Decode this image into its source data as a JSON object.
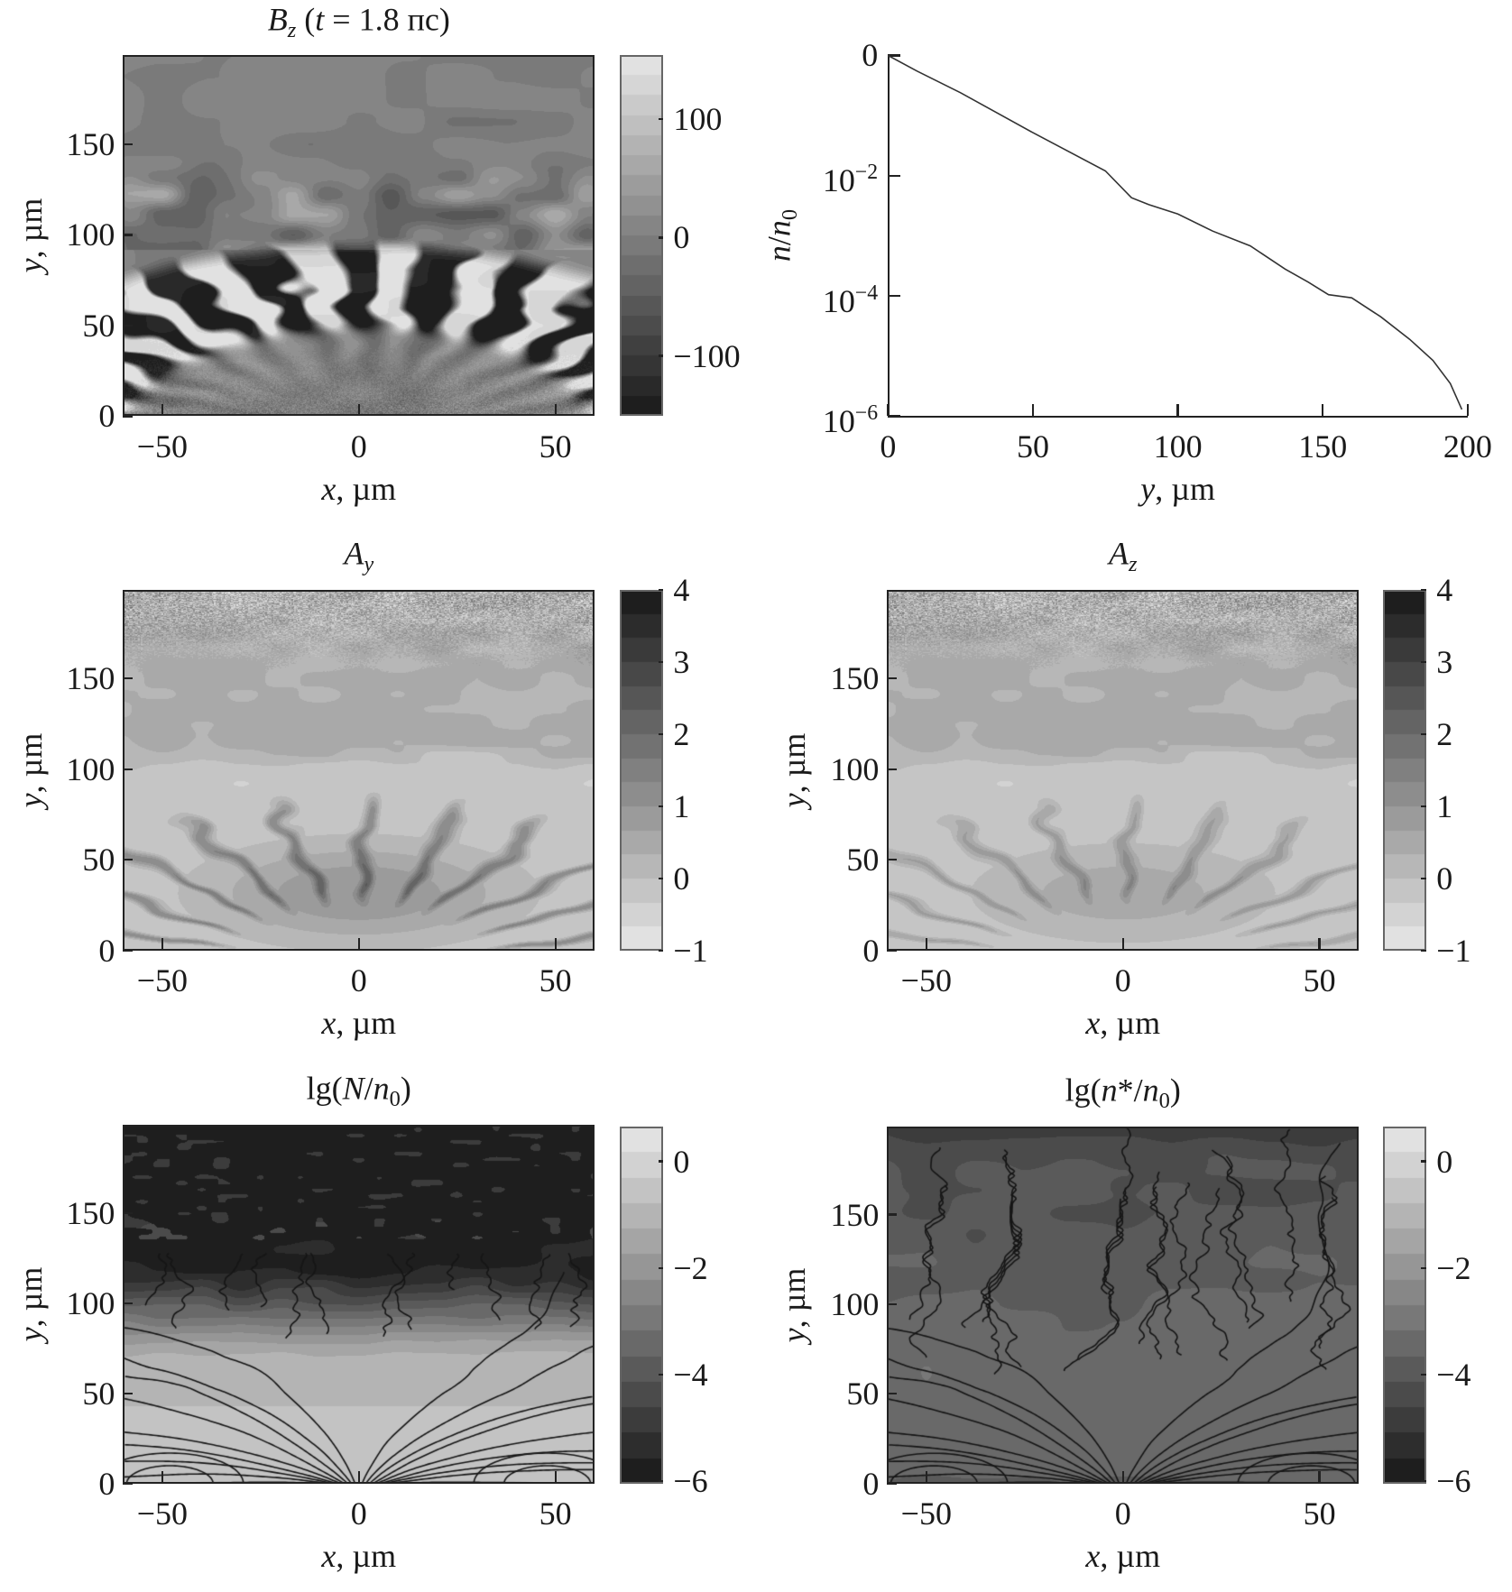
{
  "chart_data": [
    {
      "type": "heatmap",
      "title_parts": [
        {
          "t": "B",
          "s": "i"
        },
        {
          "t": "z",
          "s": "subi"
        },
        {
          "t": " (",
          "s": "n"
        },
        {
          "t": "t",
          "s": "i"
        },
        {
          "t": " = 1.8 пс)",
          "s": "n"
        }
      ],
      "xlabel_parts": [
        {
          "t": "x",
          "s": "i"
        },
        {
          "t": ", µm",
          "s": "n"
        }
      ],
      "ylabel_parts": [
        {
          "t": "y",
          "s": "i"
        },
        {
          "t": ", µm",
          "s": "n"
        }
      ],
      "xlim": [
        -60,
        60
      ],
      "ylim": [
        0,
        199
      ],
      "x_ticks": [
        "−50",
        "0",
        "50"
      ],
      "x_tick_values": [
        -50,
        0,
        50
      ],
      "y_ticks": [
        "0",
        "50",
        "100",
        "150"
      ],
      "y_tick_values": [
        0,
        50,
        100,
        150
      ],
      "colormap": "grayscale, dark = negative, light = positive",
      "colorbar": {
        "range": [
          -151,
          154
        ],
        "ticks": [
          "100",
          "0",
          "−100"
        ],
        "tick_values": [
          100,
          0,
          -100
        ],
        "levels": 18
      }
    },
    {
      "type": "line",
      "xlabel_parts": [
        {
          "t": "y",
          "s": "i"
        },
        {
          "t": ", µm",
          "s": "n"
        }
      ],
      "ylabel_parts": [
        {
          "t": "n",
          "s": "i"
        },
        {
          "t": "/",
          "s": "n"
        },
        {
          "t": "n",
          "s": "i"
        },
        {
          "t": "0",
          "s": "sub"
        }
      ],
      "xlim": [
        0,
        200
      ],
      "ylim": [
        1e-06,
        1
      ],
      "yscale": "log",
      "x_ticks": [
        "0",
        "50",
        "100",
        "150",
        "200"
      ],
      "x_tick_values": [
        0,
        50,
        100,
        150,
        200
      ],
      "y_ticks": [
        {
          "b": "0"
        },
        {
          "b": "10",
          "e": "−2"
        },
        {
          "b": "10",
          "e": "−4"
        },
        {
          "b": "10",
          "e": "−6"
        }
      ],
      "y_tick_values": [
        1,
        0.01,
        0.0001,
        1e-06
      ],
      "x": [
        0,
        10,
        25,
        50,
        75,
        84,
        90,
        100,
        112,
        125,
        137,
        145,
        152,
        160,
        170,
        180,
        188,
        194,
        198
      ],
      "y": [
        1,
        0.55,
        0.24,
        0.052,
        0.012,
        0.0043,
        0.0033,
        0.0023,
        0.0012,
        0.00068,
        0.00028,
        0.00017,
        0.000105,
        9.3e-05,
        4.5e-05,
        1.9e-05,
        8.5e-06,
        3.5e-06,
        1.3e-06
      ],
      "color": "#333333"
    },
    {
      "type": "heatmap",
      "title_parts": [
        {
          "t": "A",
          "s": "i"
        },
        {
          "t": "y",
          "s": "subi"
        }
      ],
      "xlabel_parts": [
        {
          "t": "x",
          "s": "i"
        },
        {
          "t": ", µm",
          "s": "n"
        }
      ],
      "ylabel_parts": [
        {
          "t": "y",
          "s": "i"
        },
        {
          "t": ", µm",
          "s": "n"
        }
      ],
      "xlim": [
        -60,
        60
      ],
      "ylim": [
        0,
        199
      ],
      "x_ticks": [
        "−50",
        "0",
        "50"
      ],
      "x_tick_values": [
        -50,
        0,
        50
      ],
      "y_ticks": [
        "0",
        "50",
        "100",
        "150"
      ],
      "y_tick_values": [
        0,
        50,
        100,
        150
      ],
      "colormap": "grayscale, light = low, dark = high",
      "colorbar": {
        "range": [
          -1,
          4
        ],
        "ticks": [
          "4",
          "3",
          "2",
          "1",
          "0",
          "−1"
        ],
        "tick_values": [
          4,
          3,
          2,
          1,
          0,
          -1
        ],
        "levels": 15
      }
    },
    {
      "type": "heatmap",
      "title_parts": [
        {
          "t": "A",
          "s": "i"
        },
        {
          "t": "z",
          "s": "subi"
        }
      ],
      "xlabel_parts": [
        {
          "t": "x",
          "s": "i"
        },
        {
          "t": ", µm",
          "s": "n"
        }
      ],
      "ylabel_parts": [
        {
          "t": "y",
          "s": "i"
        },
        {
          "t": ", µm",
          "s": "n"
        }
      ],
      "xlim": [
        -60,
        60
      ],
      "ylim": [
        0,
        199
      ],
      "x_ticks": [
        "−50",
        "0",
        "50"
      ],
      "x_tick_values": [
        -50,
        0,
        50
      ],
      "y_ticks": [
        "0",
        "50",
        "100",
        "150"
      ],
      "y_tick_values": [
        0,
        50,
        100,
        150
      ],
      "colormap": "grayscale, light = low, dark = high",
      "colorbar": {
        "range": [
          -1,
          4
        ],
        "ticks": [
          "4",
          "3",
          "2",
          "1",
          "0",
          "−1"
        ],
        "tick_values": [
          4,
          3,
          2,
          1,
          0,
          -1
        ],
        "levels": 15
      }
    },
    {
      "type": "heatmap",
      "title_parts": [
        {
          "t": "lg(",
          "s": "n"
        },
        {
          "t": "N",
          "s": "i"
        },
        {
          "t": "/",
          "s": "n"
        },
        {
          "t": "n",
          "s": "i"
        },
        {
          "t": "0",
          "s": "sub"
        },
        {
          "t": ")",
          "s": "n"
        }
      ],
      "xlabel_parts": [
        {
          "t": "x",
          "s": "i"
        },
        {
          "t": ", µm",
          "s": "n"
        }
      ],
      "ylabel_parts": [
        {
          "t": "y",
          "s": "i"
        },
        {
          "t": ", µm",
          "s": "n"
        }
      ],
      "xlim": [
        -60,
        60
      ],
      "ylim": [
        0,
        199
      ],
      "x_ticks": [
        "−50",
        "0",
        "50"
      ],
      "x_tick_values": [
        -50,
        0,
        50
      ],
      "y_ticks": [
        "0",
        "50",
        "100",
        "150"
      ],
      "y_tick_values": [
        0,
        50,
        100,
        150
      ],
      "colormap": "grayscale, dark = low, light = high",
      "overlay": "streamlines",
      "colorbar": {
        "range": [
          -6.05,
          0.65
        ],
        "ticks": [
          "0",
          "−2",
          "−4",
          "−6"
        ],
        "tick_values": [
          0,
          -2,
          -4,
          -6
        ],
        "levels": 14
      }
    },
    {
      "type": "heatmap",
      "title_parts": [
        {
          "t": "lg(",
          "s": "n"
        },
        {
          "t": "n",
          "s": "i"
        },
        {
          "t": "*/",
          "s": "n"
        },
        {
          "t": "n",
          "s": "i"
        },
        {
          "t": "0",
          "s": "sub"
        },
        {
          "t": ")",
          "s": "n"
        }
      ],
      "xlabel_parts": [
        {
          "t": "x",
          "s": "i"
        },
        {
          "t": ", µm",
          "s": "n"
        }
      ],
      "ylabel_parts": [
        {
          "t": "y",
          "s": "i"
        },
        {
          "t": ", µm",
          "s": "n"
        }
      ],
      "xlim": [
        -60,
        60
      ],
      "ylim": [
        0,
        199
      ],
      "x_ticks": [
        "−50",
        "0",
        "50"
      ],
      "x_tick_values": [
        -50,
        0,
        50
      ],
      "y_ticks": [
        "0",
        "50",
        "100",
        "150"
      ],
      "y_tick_values": [
        0,
        50,
        100,
        150
      ],
      "colormap": "grayscale, dark = low, light = high",
      "overlay": "streamlines",
      "colorbar": {
        "range": [
          -6.05,
          0.65
        ],
        "ticks": [
          "0",
          "−2",
          "−4",
          "−6"
        ],
        "tick_values": [
          0,
          -2,
          -4,
          -6
        ],
        "levels": 14
      }
    }
  ]
}
